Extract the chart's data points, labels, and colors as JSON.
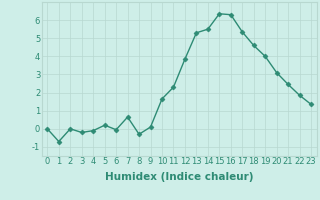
{
  "x": [
    0,
    1,
    2,
    3,
    4,
    5,
    6,
    7,
    8,
    9,
    10,
    11,
    12,
    13,
    14,
    15,
    16,
    17,
    18,
    19,
    20,
    21,
    22,
    23
  ],
  "y": [
    0.0,
    -0.7,
    0.0,
    -0.2,
    -0.1,
    0.2,
    -0.05,
    0.65,
    -0.3,
    0.1,
    1.65,
    2.3,
    3.85,
    5.3,
    5.5,
    6.35,
    6.3,
    5.35,
    4.6,
    4.0,
    3.1,
    2.45,
    1.85,
    1.35
  ],
  "line_color": "#2e8b74",
  "marker": "D",
  "marker_size": 2.5,
  "linewidth": 1.0,
  "xlabel": "Humidex (Indice chaleur)",
  "xlim": [
    -0.5,
    23.5
  ],
  "ylim": [
    -1.5,
    7.0
  ],
  "yticks": [
    -1,
    0,
    1,
    2,
    3,
    4,
    5,
    6
  ],
  "xticks": [
    0,
    1,
    2,
    3,
    4,
    5,
    6,
    7,
    8,
    9,
    10,
    11,
    12,
    13,
    14,
    15,
    16,
    17,
    18,
    19,
    20,
    21,
    22,
    23
  ],
  "bg_color": "#ceeee8",
  "grid_color": "#b8d8d0",
  "tick_fontsize": 6,
  "xlabel_fontsize": 7.5,
  "xlabel_fontweight": "bold"
}
